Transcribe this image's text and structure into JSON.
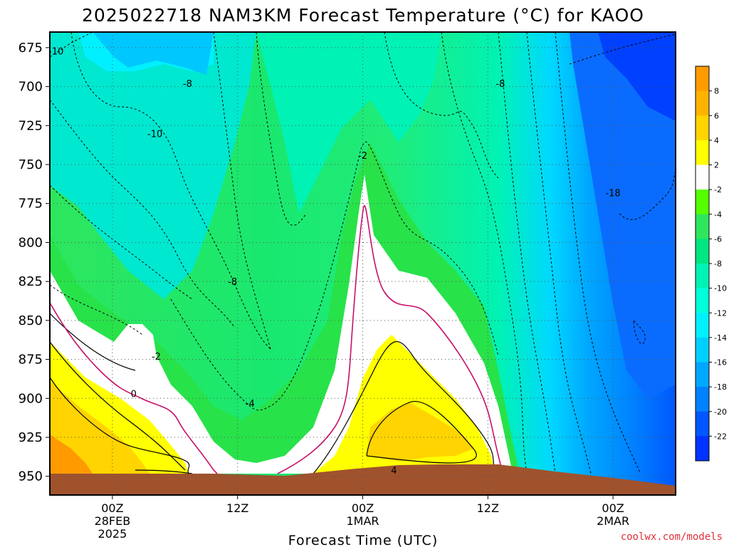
{
  "chart_data": {
    "type": "heatmap",
    "title": "2025022718 NAM3KM Forecast Temperature (°C) for KAOO",
    "xlabel": "Forecast Time (UTC)",
    "ylabel": "",
    "y_ticks": [
      "675",
      "700",
      "725",
      "750",
      "775",
      "800",
      "825",
      "850",
      "875",
      "900",
      "925",
      "950"
    ],
    "y_range": [
      665,
      962
    ],
    "x_range_hours": [
      -5,
      45
    ],
    "x_ticks": [
      {
        "hour": 0,
        "lines": [
          "00Z",
          "28FEB",
          "2025"
        ]
      },
      {
        "hour": 10,
        "lines": [
          "12Z"
        ]
      },
      {
        "hour": 20,
        "lines": [
          "00Z",
          "1MAR"
        ]
      },
      {
        "hour": 30,
        "lines": [
          "12Z"
        ]
      },
      {
        "hour": 40,
        "lines": [
          "00Z",
          "2MAR"
        ]
      }
    ],
    "colorbar_labels": [
      "8",
      "6",
      "4",
      "2",
      "-2",
      "-4",
      "-6",
      "-8",
      "-10",
      "-12",
      "-14",
      "-16",
      "-18",
      "-20",
      "-22"
    ],
    "colorbar_colors": [
      "#ff9b00",
      "#ffb300",
      "#ffd400",
      "#ffff00",
      "#ffffff",
      "#55ff00",
      "#2ee65e",
      "#00e681",
      "#00f2b5",
      "#00ffda",
      "#00f0ff",
      "#00d0ff",
      "#00a7ff",
      "#0082ff",
      "#0057ff",
      "#0033ff"
    ],
    "contour_labels": [
      {
        "text": "-10",
        "hour": -4.5,
        "pressure": 677
      },
      {
        "text": "-8",
        "hour": 6,
        "pressure": 698
      },
      {
        "text": "-10",
        "hour": 3.4,
        "pressure": 730
      },
      {
        "text": "-2",
        "hour": 20,
        "pressure": 744
      },
      {
        "text": "-8",
        "hour": 31,
        "pressure": 698
      },
      {
        "text": "-18",
        "hour": 40,
        "pressure": 768
      },
      {
        "text": "-8",
        "hour": 9.6,
        "pressure": 825
      },
      {
        "text": "-2",
        "hour": 3.5,
        "pressure": 873
      },
      {
        "text": "0",
        "hour": 1.7,
        "pressure": 897
      },
      {
        "text": "-4",
        "hour": 11,
        "pressure": 903
      },
      {
        "text": "4",
        "hour": 22.5,
        "pressure": 946
      }
    ],
    "grid": true,
    "legend": "colorbar right",
    "terrain_color": "#a0522d"
  },
  "credit": "coolwx.com/models"
}
